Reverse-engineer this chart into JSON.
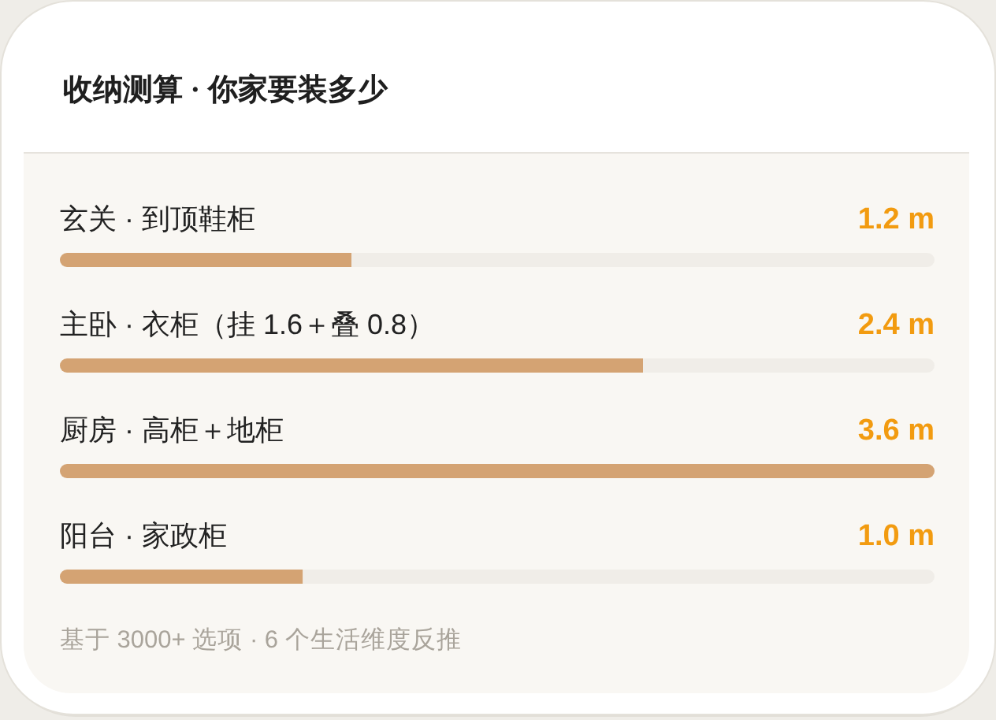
{
  "chart_data": {
    "type": "bar",
    "orientation": "horizontal",
    "title": "收纳测算 · 你家要装多少",
    "categories": [
      "玄关 · 到顶鞋柜",
      "主卧 · 衣柜（挂 1.6＋叠 0.8）",
      "厨房 · 高柜＋地柜",
      "阳台 · 家政柜"
    ],
    "values": [
      1.2,
      2.4,
      3.6,
      1.0
    ],
    "value_labels": [
      "1.2 m",
      "2.4 m",
      "3.6 m",
      "1.0 m"
    ],
    "color": "#d4a373",
    "annotations": [
      "基于 3000+ 选项 · 6 个生活维度反推"
    ]
  }
}
